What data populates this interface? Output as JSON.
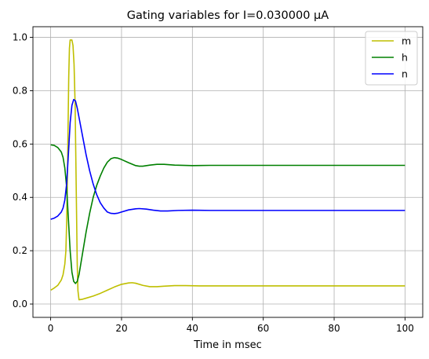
{
  "chart_data": {
    "type": "line",
    "title": "Gating variables for I=0.030000 μA",
    "xlabel": "Time in msec",
    "ylabel": "",
    "xlim": [
      -5,
      105
    ],
    "ylim": [
      -0.05,
      1.04
    ],
    "xticks": [
      0,
      20,
      40,
      60,
      80,
      100
    ],
    "yticks": [
      0.0,
      0.2,
      0.4,
      0.6,
      0.8,
      1.0
    ],
    "xtick_labels": [
      "0",
      "20",
      "40",
      "60",
      "80",
      "100"
    ],
    "ytick_labels": [
      "0.0",
      "0.2",
      "0.4",
      "0.6",
      "0.8",
      "1.0"
    ],
    "grid": true,
    "legend_position": "top-right",
    "series": [
      {
        "name": "m",
        "color": "#bfbf00",
        "points": [
          [
            0,
            0.052
          ],
          [
            1,
            0.06
          ],
          [
            2,
            0.07
          ],
          [
            3,
            0.09
          ],
          [
            3.5,
            0.11
          ],
          [
            4,
            0.15
          ],
          [
            4.3,
            0.2
          ],
          [
            4.5,
            0.3
          ],
          [
            4.7,
            0.45
          ],
          [
            4.9,
            0.65
          ],
          [
            5.1,
            0.85
          ],
          [
            5.3,
            0.96
          ],
          [
            5.5,
            0.99
          ],
          [
            6,
            0.99
          ],
          [
            6.3,
            0.97
          ],
          [
            6.6,
            0.9
          ],
          [
            6.9,
            0.75
          ],
          [
            7.1,
            0.55
          ],
          [
            7.3,
            0.35
          ],
          [
            7.5,
            0.15
          ],
          [
            7.7,
            0.05
          ],
          [
            8,
            0.016
          ],
          [
            9,
            0.018
          ],
          [
            10,
            0.022
          ],
          [
            12,
            0.03
          ],
          [
            14,
            0.04
          ],
          [
            16,
            0.052
          ],
          [
            18,
            0.064
          ],
          [
            20,
            0.074
          ],
          [
            22,
            0.079
          ],
          [
            23,
            0.08
          ],
          [
            24,
            0.078
          ],
          [
            26,
            0.07
          ],
          [
            28,
            0.065
          ],
          [
            30,
            0.065
          ],
          [
            32,
            0.067
          ],
          [
            35,
            0.069
          ],
          [
            38,
            0.069
          ],
          [
            42,
            0.068
          ],
          [
            50,
            0.068
          ],
          [
            70,
            0.068
          ],
          [
            100,
            0.068
          ]
        ]
      },
      {
        "name": "h",
        "color": "#008000",
        "points": [
          [
            0,
            0.597
          ],
          [
            1,
            0.595
          ],
          [
            2,
            0.587
          ],
          [
            3,
            0.57
          ],
          [
            3.5,
            0.55
          ],
          [
            4,
            0.51
          ],
          [
            4.5,
            0.44
          ],
          [
            5,
            0.32
          ],
          [
            5.5,
            0.2
          ],
          [
            6,
            0.12
          ],
          [
            6.5,
            0.085
          ],
          [
            7,
            0.077
          ],
          [
            7.5,
            0.085
          ],
          [
            8,
            0.11
          ],
          [
            9,
            0.19
          ],
          [
            10,
            0.27
          ],
          [
            11,
            0.34
          ],
          [
            12,
            0.4
          ],
          [
            13,
            0.445
          ],
          [
            14,
            0.48
          ],
          [
            15,
            0.51
          ],
          [
            16,
            0.532
          ],
          [
            17,
            0.545
          ],
          [
            18,
            0.549
          ],
          [
            19,
            0.547
          ],
          [
            20,
            0.542
          ],
          [
            22,
            0.53
          ],
          [
            24,
            0.519
          ],
          [
            25,
            0.517
          ],
          [
            26,
            0.517
          ],
          [
            28,
            0.521
          ],
          [
            30,
            0.524
          ],
          [
            32,
            0.524
          ],
          [
            35,
            0.521
          ],
          [
            40,
            0.519
          ],
          [
            45,
            0.52
          ],
          [
            50,
            0.52
          ],
          [
            70,
            0.52
          ],
          [
            100,
            0.52
          ]
        ]
      },
      {
        "name": "n",
        "color": "#0000ff",
        "points": [
          [
            0,
            0.318
          ],
          [
            1,
            0.322
          ],
          [
            2,
            0.33
          ],
          [
            3,
            0.345
          ],
          [
            3.5,
            0.36
          ],
          [
            4,
            0.39
          ],
          [
            4.5,
            0.45
          ],
          [
            5,
            0.56
          ],
          [
            5.5,
            0.68
          ],
          [
            6,
            0.745
          ],
          [
            6.5,
            0.767
          ],
          [
            7,
            0.762
          ],
          [
            7.5,
            0.735
          ],
          [
            8,
            0.7
          ],
          [
            9,
            0.63
          ],
          [
            10,
            0.56
          ],
          [
            11,
            0.5
          ],
          [
            12,
            0.45
          ],
          [
            13,
            0.41
          ],
          [
            14,
            0.38
          ],
          [
            15,
            0.36
          ],
          [
            16,
            0.345
          ],
          [
            17,
            0.34
          ],
          [
            18,
            0.339
          ],
          [
            19,
            0.341
          ],
          [
            20,
            0.345
          ],
          [
            22,
            0.353
          ],
          [
            24,
            0.357
          ],
          [
            25,
            0.358
          ],
          [
            27,
            0.356
          ],
          [
            29,
            0.352
          ],
          [
            31,
            0.349
          ],
          [
            33,
            0.349
          ],
          [
            36,
            0.351
          ],
          [
            40,
            0.352
          ],
          [
            45,
            0.351
          ],
          [
            50,
            0.351
          ],
          [
            70,
            0.351
          ],
          [
            100,
            0.351
          ]
        ]
      }
    ]
  }
}
